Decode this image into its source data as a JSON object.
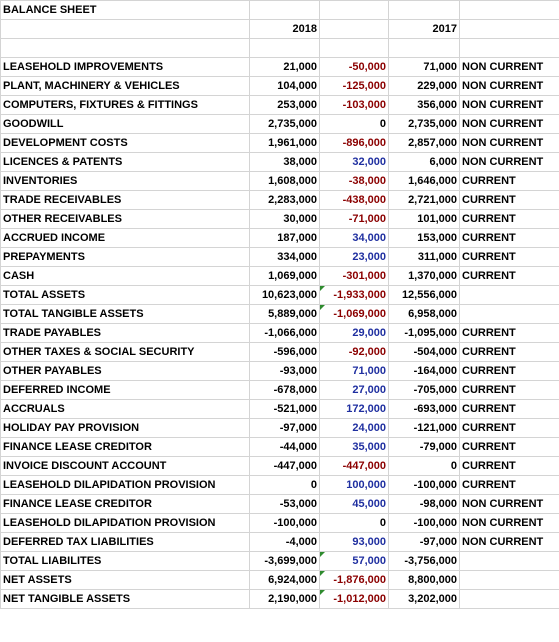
{
  "title": "BALANCE SHEET",
  "years": [
    "2018",
    "",
    "2017"
  ],
  "rows": [
    {
      "label": "LEASEHOLD IMPROVEMENTS",
      "y2018": "21,000",
      "diff": "-50,000",
      "y2017": "71,000",
      "cls": "NON CURRENT",
      "dt": "neg",
      "flag": false
    },
    {
      "label": "PLANT, MACHINERY & VEHICLES",
      "y2018": "104,000",
      "diff": "-125,000",
      "y2017": "229,000",
      "cls": "NON CURRENT",
      "dt": "neg",
      "flag": false
    },
    {
      "label": "COMPUTERS, FIXTURES & FITTINGS",
      "y2018": "253,000",
      "diff": "-103,000",
      "y2017": "356,000",
      "cls": "NON CURRENT",
      "dt": "neg",
      "flag": false
    },
    {
      "label": "GOODWILL",
      "y2018": "2,735,000",
      "diff": "0",
      "y2017": "2,735,000",
      "cls": "NON CURRENT",
      "dt": "zero",
      "flag": false
    },
    {
      "label": "DEVELOPMENT COSTS",
      "y2018": "1,961,000",
      "diff": "-896,000",
      "y2017": "2,857,000",
      "cls": "NON CURRENT",
      "dt": "neg",
      "flag": false
    },
    {
      "label": "LICENCES & PATENTS",
      "y2018": "38,000",
      "diff": "32,000",
      "y2017": "6,000",
      "cls": "NON CURRENT",
      "dt": "pos",
      "flag": false
    },
    {
      "label": "INVENTORIES",
      "y2018": "1,608,000",
      "diff": "-38,000",
      "y2017": "1,646,000",
      "cls": "CURRENT",
      "dt": "neg",
      "flag": false
    },
    {
      "label": "TRADE RECEIVABLES",
      "y2018": "2,283,000",
      "diff": "-438,000",
      "y2017": "2,721,000",
      "cls": "CURRENT",
      "dt": "neg",
      "flag": false
    },
    {
      "label": "OTHER RECEIVABLES",
      "y2018": "30,000",
      "diff": "-71,000",
      "y2017": "101,000",
      "cls": "CURRENT",
      "dt": "neg",
      "flag": false
    },
    {
      "label": "ACCRUED INCOME",
      "y2018": "187,000",
      "diff": "34,000",
      "y2017": "153,000",
      "cls": "CURRENT",
      "dt": "pos",
      "flag": false
    },
    {
      "label": "PREPAYMENTS",
      "y2018": "334,000",
      "diff": "23,000",
      "y2017": "311,000",
      "cls": "CURRENT",
      "dt": "pos",
      "flag": false
    },
    {
      "label": "CASH",
      "y2018": "1,069,000",
      "diff": "-301,000",
      "y2017": "1,370,000",
      "cls": "CURRENT",
      "dt": "neg",
      "flag": false
    },
    {
      "label": "TOTAL ASSETS",
      "y2018": "10,623,000",
      "diff": "-1,933,000",
      "y2017": "12,556,000",
      "cls": "",
      "dt": "neg",
      "flag": true
    },
    {
      "label": "TOTAL TANGIBLE ASSETS",
      "y2018": "5,889,000",
      "diff": "-1,069,000",
      "y2017": "6,958,000",
      "cls": "",
      "dt": "neg",
      "flag": true
    },
    {
      "label": "TRADE PAYABLES",
      "y2018": "-1,066,000",
      "diff": "29,000",
      "y2017": "-1,095,000",
      "cls": "CURRENT",
      "dt": "pos",
      "flag": false
    },
    {
      "label": "OTHER TAXES & SOCIAL SECURITY",
      "y2018": "-596,000",
      "diff": "-92,000",
      "y2017": "-504,000",
      "cls": "CURRENT",
      "dt": "neg",
      "flag": false
    },
    {
      "label": "OTHER PAYABLES",
      "y2018": "-93,000",
      "diff": "71,000",
      "y2017": "-164,000",
      "cls": "CURRENT",
      "dt": "pos",
      "flag": false
    },
    {
      "label": "DEFERRED INCOME",
      "y2018": "-678,000",
      "diff": "27,000",
      "y2017": "-705,000",
      "cls": "CURRENT",
      "dt": "pos",
      "flag": false
    },
    {
      "label": "ACCRUALS",
      "y2018": "-521,000",
      "diff": "172,000",
      "y2017": "-693,000",
      "cls": "CURRENT",
      "dt": "pos",
      "flag": false
    },
    {
      "label": "HOLIDAY PAY PROVISION",
      "y2018": "-97,000",
      "diff": "24,000",
      "y2017": "-121,000",
      "cls": "CURRENT",
      "dt": "pos",
      "flag": false
    },
    {
      "label": "FINANCE LEASE CREDITOR",
      "y2018": "-44,000",
      "diff": "35,000",
      "y2017": "-79,000",
      "cls": "CURRENT",
      "dt": "pos",
      "flag": false
    },
    {
      "label": "INVOICE DISCOUNT ACCOUNT",
      "y2018": "-447,000",
      "diff": "-447,000",
      "y2017": "0",
      "cls": "CURRENT",
      "dt": "neg",
      "flag": false
    },
    {
      "label": "LEASEHOLD DILAPIDATION PROVISION",
      "y2018": "0",
      "diff": "100,000",
      "y2017": "-100,000",
      "cls": "CURRENT",
      "dt": "pos",
      "flag": false
    },
    {
      "label": "FINANCE LEASE CREDITOR",
      "y2018": "-53,000",
      "diff": "45,000",
      "y2017": "-98,000",
      "cls": "NON CURRENT",
      "dt": "pos",
      "flag": false
    },
    {
      "label": "LEASEHOLD DILAPIDATION PROVISION",
      "y2018": "-100,000",
      "diff": "0",
      "y2017": "-100,000",
      "cls": "NON CURRENT",
      "dt": "zero",
      "flag": false
    },
    {
      "label": "DEFERRED TAX LIABILITIES",
      "y2018": "-4,000",
      "diff": "93,000",
      "y2017": "-97,000",
      "cls": "NON CURRENT",
      "dt": "pos",
      "flag": false
    },
    {
      "label": "TOTAL LIABILITES",
      "y2018": "-3,699,000",
      "diff": "57,000",
      "y2017": "-3,756,000",
      "cls": "",
      "dt": "pos",
      "flag": true
    },
    {
      "label": "NET ASSETS",
      "y2018": "6,924,000",
      "diff": "-1,876,000",
      "y2017": "8,800,000",
      "cls": "",
      "dt": "neg",
      "flag": true
    },
    {
      "label": "NET TANGIBLE ASSETS",
      "y2018": "2,190,000",
      "diff": "-1,012,000",
      "y2017": "3,202,000",
      "cls": "",
      "dt": "neg",
      "flag": true
    }
  ]
}
